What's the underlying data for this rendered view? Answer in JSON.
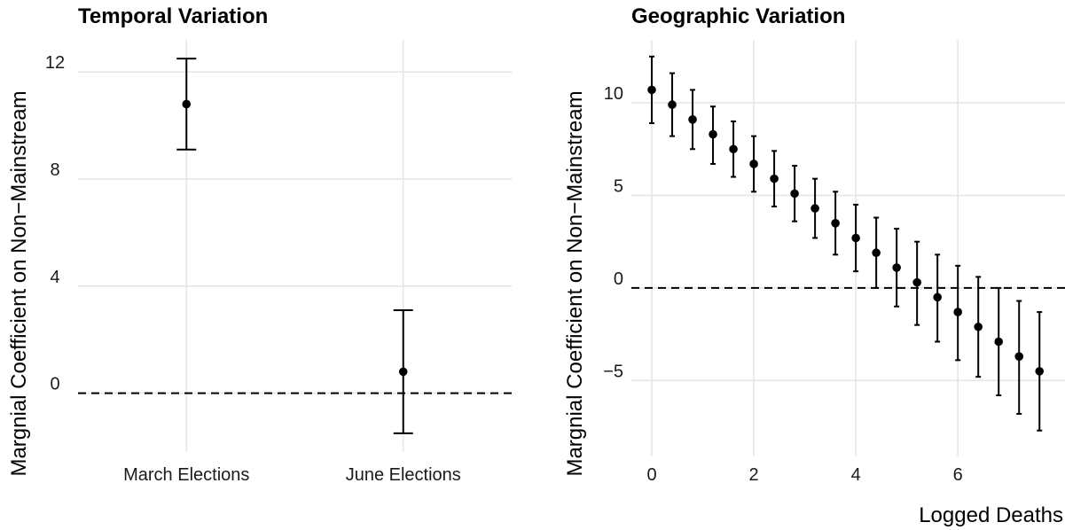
{
  "chart_data": [
    {
      "type": "errorbar",
      "title": "Temporal Variation",
      "xlabel": "",
      "ylabel": "Margnial Coefficient on Non−Mainstream",
      "categories": [
        "March Elections",
        "June Elections"
      ],
      "estimates": [
        10.8,
        0.8
      ],
      "lower": [
        9.1,
        -1.5
      ],
      "upper": [
        12.5,
        3.1
      ],
      "yticks": [
        0,
        4,
        8,
        12
      ],
      "ylim": [
        -2.2,
        13.2
      ],
      "reference_line": 0,
      "grid": true
    },
    {
      "type": "errorbar",
      "title": "Geographic Variation",
      "xlabel": "Logged Deaths",
      "ylabel": "Margnial Coefficient on Non−Mainstream",
      "x": [
        0,
        0.4,
        0.8,
        1.2,
        1.6,
        2.0,
        2.4,
        2.8,
        3.2,
        3.6,
        4.0,
        4.4,
        4.8,
        5.2,
        5.6,
        6.0,
        6.4,
        6.8,
        7.2,
        7.6
      ],
      "estimates": [
        10.7,
        9.9,
        9.1,
        8.3,
        7.5,
        6.7,
        5.9,
        5.1,
        4.3,
        3.5,
        2.7,
        1.9,
        1.1,
        0.3,
        -0.5,
        -1.3,
        -2.1,
        -2.9,
        -3.7,
        -4.5
      ],
      "lower": [
        8.9,
        8.2,
        7.5,
        6.7,
        6.0,
        5.2,
        4.4,
        3.6,
        2.7,
        1.8,
        0.9,
        0.0,
        -1.0,
        -2.0,
        -2.9,
        -3.9,
        -4.8,
        -5.8,
        -6.8,
        -7.7
      ],
      "upper": [
        12.5,
        11.6,
        10.7,
        9.8,
        9.0,
        8.2,
        7.4,
        6.6,
        5.9,
        5.2,
        4.5,
        3.8,
        3.2,
        2.5,
        1.8,
        1.2,
        0.6,
        0.0,
        -0.7,
        -1.3
      ],
      "xticks": [
        0,
        2,
        4,
        6
      ],
      "yticks": [
        -5,
        0,
        5,
        10
      ],
      "xlim": [
        -0.4,
        8.1
      ],
      "ylim": [
        -9.1,
        13.4
      ],
      "reference_line": 0,
      "grid": true
    }
  ]
}
